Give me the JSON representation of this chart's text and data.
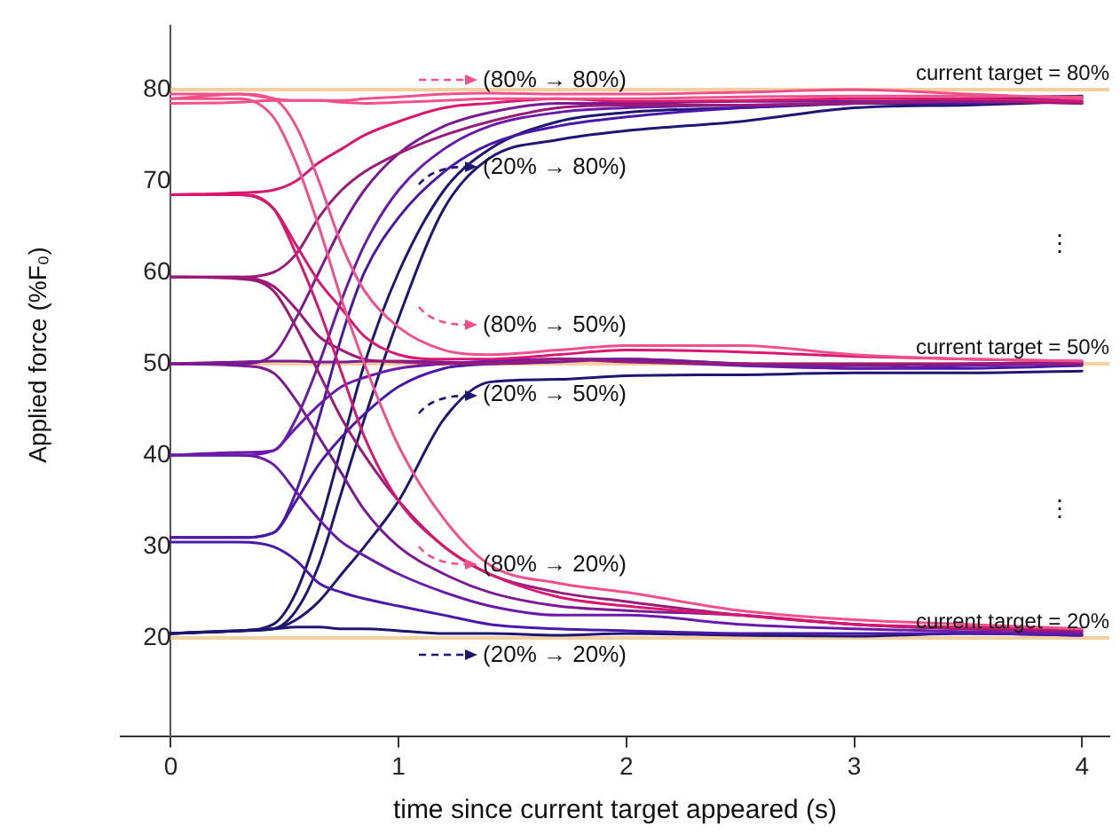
{
  "chart_data": {
    "type": "line",
    "xlabel": "time since current target appeared (s)",
    "ylabel": "Applied force (%F₀)",
    "x": [
      0,
      0.3,
      0.45,
      0.55,
      0.65,
      0.75,
      0.85,
      1.0,
      1.2,
      1.4,
      1.7,
      2.0,
      2.5,
      3.0,
      3.5,
      4.0
    ],
    "xlim": [
      -0.22,
      4.12
    ],
    "xticks": [
      0,
      1,
      2,
      3,
      4
    ],
    "ylim": [
      9.2,
      87
    ],
    "yticks": [
      20,
      30,
      40,
      50,
      60,
      70,
      80
    ],
    "grid": false,
    "legend": false,
    "marker": "none",
    "line_style": "solid",
    "series": [
      {
        "color": "#f0508c",
        "values": [
          79,
          79.5,
          79,
          78.8,
          78.8,
          78.8,
          79,
          79.2,
          79.5,
          79.6,
          79.5,
          79.5,
          79.7,
          80,
          79.5,
          79
        ]
      },
      {
        "color": "#f0508c",
        "values": [
          78.5,
          78.6,
          78.8,
          78.8,
          78.8,
          78.6,
          78.5,
          78.6,
          78.8,
          79,
          79,
          79,
          79.2,
          79.3,
          79.3,
          79.2
        ]
      },
      {
        "color": "#f0508c",
        "values": [
          79.5,
          79.5,
          79,
          76,
          70,
          63,
          58,
          54,
          51.5,
          51,
          51.5,
          52,
          52,
          51,
          50.5,
          50.3
        ]
      },
      {
        "color": "#f0508c",
        "values": [
          79,
          79,
          77,
          72,
          65,
          57,
          50,
          41,
          33,
          28,
          26,
          25,
          23,
          22,
          21.5,
          21
        ]
      },
      {
        "color": "#d8186e",
        "values": [
          68.5,
          68.7,
          69,
          70,
          72,
          73.5,
          75,
          76.5,
          78,
          78.5,
          79,
          78.7,
          78.8,
          79,
          79,
          78.7
        ]
      },
      {
        "color": "#d8186e",
        "values": [
          68.5,
          68.5,
          67,
          63,
          59,
          56,
          53,
          51,
          50.5,
          50.5,
          51,
          51.5,
          51.3,
          50.8,
          50.5,
          50.3
        ]
      },
      {
        "color": "#d8186e",
        "values": [
          68.5,
          68.5,
          67,
          62,
          56,
          49,
          42,
          35,
          30,
          27,
          24.5,
          23.5,
          22.5,
          21.5,
          21.2,
          21
        ]
      },
      {
        "color": "#9a1a78",
        "values": [
          59.5,
          59.5,
          60,
          62,
          66,
          69,
          71,
          73,
          75,
          76.5,
          78,
          78.3,
          78.3,
          78.5,
          78.7,
          78.5
        ]
      },
      {
        "color": "#9a1a78",
        "values": [
          59.5,
          59.5,
          58.5,
          56,
          53,
          51.5,
          50.5,
          50.2,
          50,
          50,
          50.5,
          50.2,
          50,
          50,
          50,
          50
        ]
      },
      {
        "color": "#9a1a78",
        "values": [
          59.5,
          59.3,
          58,
          54,
          49,
          44,
          40,
          35,
          30,
          27,
          25,
          24,
          22.5,
          21.5,
          21,
          20.8
        ]
      },
      {
        "color": "#7a1a92",
        "values": [
          50,
          50,
          51,
          55,
          60,
          65,
          69,
          73,
          76,
          77.5,
          78.5,
          78.5,
          78.7,
          78.7,
          78.7,
          78.5
        ]
      },
      {
        "color": "#7a1a92",
        "values": [
          50,
          50.2,
          50.3,
          50.3,
          50.2,
          50.2,
          50.3,
          50.3,
          50.2,
          50,
          50.2,
          50.5,
          50,
          49.8,
          50,
          50.2
        ]
      },
      {
        "color": "#7a1a92",
        "values": [
          50,
          49.8,
          49,
          46,
          42,
          38,
          34,
          30,
          27,
          25,
          23.5,
          23,
          22.5,
          21.5,
          21,
          20.7
        ]
      },
      {
        "color": "#6a1aa8",
        "values": [
          40,
          40.3,
          40.5,
          44,
          50,
          57,
          63,
          69,
          73.5,
          76,
          77.5,
          78,
          78.3,
          78.5,
          78.8,
          79
        ]
      },
      {
        "color": "#6a1aa8",
        "values": [
          40,
          40,
          40.5,
          43,
          45.5,
          47.5,
          48.5,
          49.5,
          50,
          50.3,
          50.5,
          50.3,
          49.8,
          49.5,
          49.8,
          50
        ]
      },
      {
        "color": "#6a1aa8",
        "values": [
          40,
          40,
          39,
          36,
          33,
          30.5,
          29,
          27,
          25,
          23.5,
          22.5,
          22.5,
          21.5,
          21,
          20.7,
          20.5
        ]
      },
      {
        "color": "#4a18a8",
        "values": [
          31,
          31,
          31.5,
          36,
          44,
          53,
          60,
          66,
          71,
          74,
          76,
          77,
          78,
          78.5,
          78.5,
          79
        ]
      },
      {
        "color": "#4a18a8",
        "values": [
          31,
          31,
          31.5,
          35,
          39,
          42,
          44.5,
          47.5,
          49.5,
          50,
          50.5,
          50.5,
          50,
          49.5,
          49.5,
          49.8
        ]
      },
      {
        "color": "#4a18a8",
        "values": [
          30.5,
          30.5,
          30,
          28.5,
          26,
          25,
          24.3,
          23.5,
          22.5,
          21.5,
          21,
          20.8,
          20.5,
          20.5,
          20.5,
          20.3
        ]
      },
      {
        "color": "#1e1670",
        "values": [
          20.5,
          20.8,
          21,
          23,
          28,
          36,
          44,
          55,
          67,
          72.5,
          74.5,
          75.5,
          76.5,
          78,
          78.3,
          78.7
        ]
      },
      {
        "color": "#1e1670",
        "values": [
          20.5,
          20.8,
          21.5,
          25,
          32,
          41,
          50,
          60,
          69,
          73.5,
          76.5,
          77.5,
          78,
          78.5,
          79,
          79.3
        ]
      },
      {
        "color": "#1e1670",
        "values": [
          20.5,
          20.8,
          21,
          22,
          24,
          27,
          30,
          35,
          44,
          48,
          48.3,
          48.7,
          48.8,
          49,
          49,
          49.2
        ]
      },
      {
        "color": "#1e1670",
        "values": [
          20.5,
          20.8,
          21,
          21.2,
          21.2,
          21,
          21,
          20.8,
          20.5,
          20.5,
          20.3,
          20.5,
          20.3,
          20.2,
          20.5,
          20.3
        ]
      }
    ],
    "ref_lines": [
      {
        "axis": "y",
        "value": 80,
        "label": "current target = 80%",
        "color": "#f5cf9f"
      },
      {
        "axis": "y",
        "value": 50,
        "label": "current target = 50%",
        "color": "#f5cf9f"
      },
      {
        "axis": "y",
        "value": 20,
        "label": "current target = 20%",
        "color": "#f5cf9f"
      }
    ],
    "annotations": [
      "(80% → 80%)",
      "(20% → 80%)",
      "(80% → 50%)",
      "(20% → 50%)",
      "(80% → 20%)",
      "(20% → 20%)",
      "⋮",
      "⋮"
    ]
  }
}
